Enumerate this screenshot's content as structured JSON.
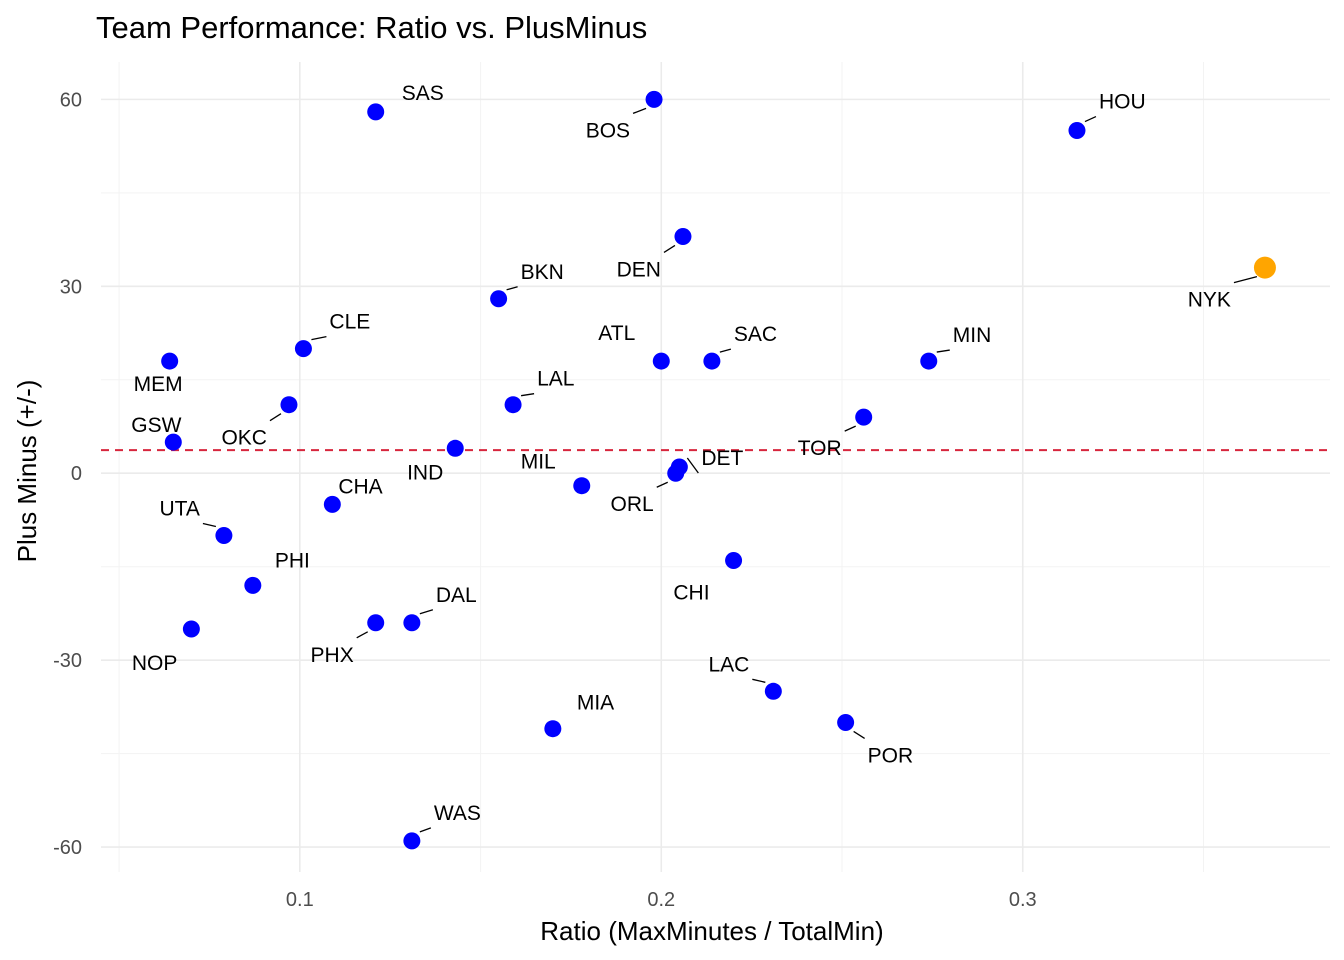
{
  "chart_data": {
    "type": "scatter",
    "title": "Team Performance: Ratio vs. PlusMinus",
    "xlabel": "Ratio (MaxMinutes / TotalMin)",
    "ylabel": "Plus Minus (+/-)",
    "xlim": [
      0.045,
      0.385
    ],
    "ylim": [
      -64,
      66
    ],
    "x_ticks": [
      0.1,
      0.2,
      0.3
    ],
    "x_tick_labels": [
      "0.1",
      "0.2",
      "0.3"
    ],
    "y_ticks": [
      -60,
      -30,
      0,
      30,
      60
    ],
    "y_tick_labels": [
      "-60",
      "-30",
      "0",
      "30",
      "60"
    ],
    "grid": true,
    "reference_line": {
      "type": "horizontal",
      "y": 3.7,
      "style": "dashed",
      "color": "#d7263d"
    },
    "colors": {
      "default": "#0000ff",
      "highlight": "#ffa500"
    },
    "points": [
      {
        "label": "SAS",
        "x": 0.121,
        "y": 58
      },
      {
        "label": "BOS",
        "x": 0.198,
        "y": 60
      },
      {
        "label": "HOU",
        "x": 0.315,
        "y": 55
      },
      {
        "label": "DEN",
        "x": 0.206,
        "y": 38
      },
      {
        "label": "BKN",
        "x": 0.155,
        "y": 28
      },
      {
        "label": "NYK",
        "x": 0.367,
        "y": 33,
        "highlight": true
      },
      {
        "label": "CLE",
        "x": 0.101,
        "y": 20
      },
      {
        "label": "MEM",
        "x": 0.064,
        "y": 18
      },
      {
        "label": "ATL",
        "x": 0.2,
        "y": 18
      },
      {
        "label": "SAC",
        "x": 0.214,
        "y": 18
      },
      {
        "label": "MIN",
        "x": 0.274,
        "y": 18
      },
      {
        "label": "LAL",
        "x": 0.159,
        "y": 11
      },
      {
        "label": "OKC",
        "x": 0.097,
        "y": 11
      },
      {
        "label": "TOR",
        "x": 0.256,
        "y": 9
      },
      {
        "label": "GSW",
        "x": 0.065,
        "y": 5
      },
      {
        "label": "IND",
        "x": 0.143,
        "y": 4
      },
      {
        "label": "DET",
        "x": 0.205,
        "y": 1
      },
      {
        "label": "ORL",
        "x": 0.204,
        "y": 0
      },
      {
        "label": "MIL",
        "x": 0.178,
        "y": -2
      },
      {
        "label": "CHA",
        "x": 0.109,
        "y": -5
      },
      {
        "label": "UTA",
        "x": 0.079,
        "y": -10
      },
      {
        "label": "CHI",
        "x": 0.22,
        "y": -14
      },
      {
        "label": "PHI",
        "x": 0.087,
        "y": -18
      },
      {
        "label": "DAL",
        "x": 0.131,
        "y": -24
      },
      {
        "label": "PHX",
        "x": 0.121,
        "y": -24
      },
      {
        "label": "NOP",
        "x": 0.07,
        "y": -25
      },
      {
        "label": "LAC",
        "x": 0.231,
        "y": -35
      },
      {
        "label": "POR",
        "x": 0.251,
        "y": -40
      },
      {
        "label": "MIA",
        "x": 0.17,
        "y": -41
      },
      {
        "label": "WAS",
        "x": 0.131,
        "y": -59
      }
    ]
  }
}
